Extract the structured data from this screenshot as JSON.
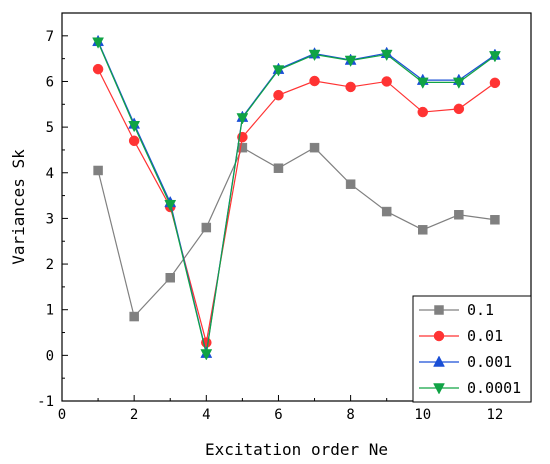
{
  "chart_data": {
    "type": "line",
    "xlabel": "Excitation order Ne",
    "ylabel": "Variances Sk",
    "xlim": [
      0,
      13
    ],
    "ylim": [
      -1,
      7.5
    ],
    "xticks": [
      0,
      2,
      4,
      6,
      8,
      10,
      12
    ],
    "yticks": [
      -1,
      0,
      1,
      2,
      3,
      4,
      5,
      6,
      7
    ],
    "x": [
      1,
      2,
      3,
      4,
      5,
      6,
      7,
      8,
      9,
      10,
      11,
      12
    ],
    "legend_position": "bottom-right",
    "grid": false,
    "series": [
      {
        "name": "0.1",
        "color": "#808080",
        "marker": "square",
        "values": [
          4.05,
          0.85,
          1.7,
          2.8,
          4.55,
          4.1,
          4.55,
          3.75,
          3.15,
          2.75,
          3.08,
          2.97
        ]
      },
      {
        "name": "0.01",
        "color": "#ff3333",
        "marker": "circle",
        "values": [
          6.27,
          4.7,
          3.25,
          0.28,
          4.78,
          5.7,
          6.01,
          5.88,
          6.0,
          5.33,
          5.4,
          5.97
        ]
      },
      {
        "name": "0.001",
        "color": "#1a4fd6",
        "marker": "triangle-up",
        "values": [
          6.88,
          5.07,
          3.35,
          0.05,
          5.22,
          6.27,
          6.61,
          6.47,
          6.62,
          6.03,
          6.03,
          6.58
        ]
      },
      {
        "name": "0.0001",
        "color": "#10a345",
        "marker": "triangle-down",
        "values": [
          6.86,
          5.03,
          3.3,
          0.03,
          5.2,
          6.25,
          6.59,
          6.46,
          6.59,
          5.98,
          5.98,
          6.56
        ]
      }
    ]
  }
}
